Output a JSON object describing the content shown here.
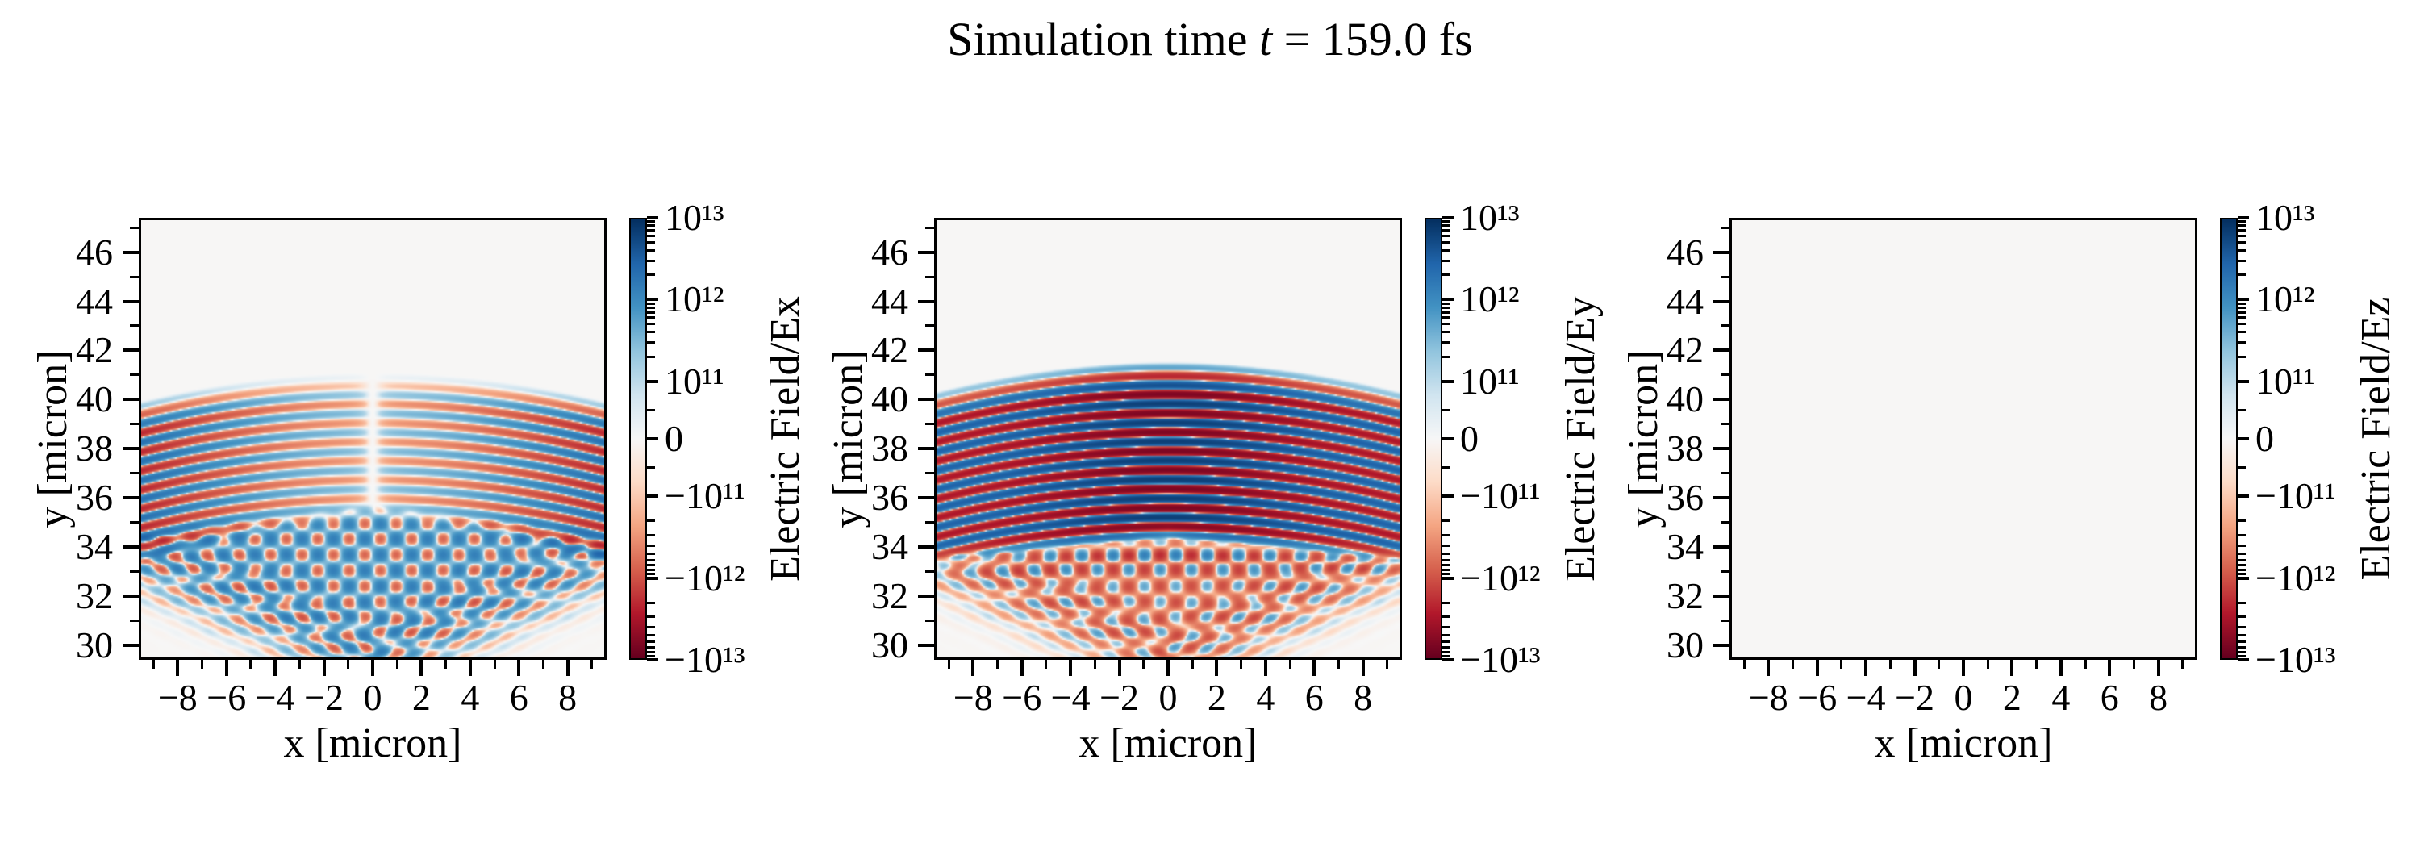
{
  "title": {
    "prefix": "Simulation time ",
    "var": "t",
    "suffix": " = 159.0 fs",
    "text": "Simulation time t = 159.0 fs"
  },
  "figure": {
    "background": "#ffffff",
    "spine_color": "#000000",
    "text_color": "#000000",
    "near_zero_fill": "#f6f5f4"
  },
  "colormap": {
    "name": "RdBu",
    "stops": [
      [
        -1.0,
        "#67001f"
      ],
      [
        -0.8,
        "#b2182b"
      ],
      [
        -0.6,
        "#d6604d"
      ],
      [
        -0.4,
        "#f4a582"
      ],
      [
        -0.2,
        "#fddbc7"
      ],
      [
        0.0,
        "#f7f7f7"
      ],
      [
        0.2,
        "#d1e5f0"
      ],
      [
        0.4,
        "#92c5de"
      ],
      [
        0.6,
        "#4393c3"
      ],
      [
        0.8,
        "#2166ac"
      ],
      [
        1.0,
        "#053061"
      ]
    ]
  },
  "chart_data": [
    {
      "type": "heatmap",
      "component": "Ex",
      "xlabel": "x [micron]",
      "ylabel": "y [micron]",
      "colorbar_label": "Electric Field/Ex",
      "xlim": [
        -9.6,
        9.6
      ],
      "ylim": [
        29.4,
        47.4
      ],
      "xticks": [
        -8,
        -6,
        -4,
        -2,
        0,
        2,
        4,
        6,
        8
      ],
      "xticklabels": [
        "−8",
        "−6",
        "−4",
        "−2",
        "0",
        "2",
        "4",
        "6",
        "8"
      ],
      "xminorticks": [
        -9,
        -7,
        -5,
        -3,
        -1,
        1,
        3,
        5,
        7,
        9
      ],
      "yticks": [
        30,
        32,
        34,
        36,
        38,
        40,
        42,
        44,
        46
      ],
      "yticklabels": [
        "30",
        "32",
        "34",
        "36",
        "38",
        "40",
        "42",
        "44",
        "46"
      ],
      "yminorticks": [
        31,
        33,
        35,
        37,
        39,
        41,
        43,
        45,
        47
      ],
      "grid": false,
      "colorbar": {
        "scale": "symlog",
        "vmin": -10000000000000.0,
        "vmax": 10000000000000.0,
        "linthresh": 100000000000.0,
        "lin_frac": 0.26,
        "decade_frac": 0.37,
        "ticks": [
          {
            "value": 10000000000000.0,
            "label": "10¹³"
          },
          {
            "value": 1000000000000.0,
            "label": "10¹²"
          },
          {
            "value": 100000000000.0,
            "label": "10¹¹"
          },
          {
            "value": 0,
            "label": "0"
          },
          {
            "value": -100000000000.0,
            "label": "−10¹¹"
          },
          {
            "value": -1000000000000.0,
            "label": "−10¹²"
          },
          {
            "value": -10000000000000.0,
            "label": "−10¹³"
          }
        ],
        "log_minor_mantissas": [
          2,
          3,
          4,
          5,
          6,
          7,
          8,
          9
        ],
        "lin_minor_values": [
          50000000000.0,
          -50000000000.0
        ]
      },
      "field_model": {
        "background_value": -4000000000.0,
        "stripe": {
          "top": 41.2,
          "top_ramp": 1.2,
          "wavelength": 0.78,
          "curvature": 0.013,
          "bottom_center": 35.2,
          "bottom_slope": 0.23,
          "bottom_ramp": 1.0,
          "amp_profile": "edge_null_center",
          "amp_base": 350000000000.0,
          "amp_edge": 1800000000000.0,
          "null_width": 0.4
        },
        "interference": {
          "top": 35.8,
          "top_slope": 0.1,
          "checker_amp": 1100000000000.0,
          "checker_pitch": 1.3,
          "bias": 350000000000.0,
          "ray_amp": 450000000000.0,
          "fan_slope": 2.2,
          "fan_offset": 1.2,
          "band_boost": 0,
          "band_y": 0
        }
      }
    },
    {
      "type": "heatmap",
      "component": "Ey",
      "xlabel": "x [micron]",
      "ylabel": "y [micron]",
      "colorbar_label": "Electric Field/Ey",
      "xlim": [
        -9.6,
        9.6
      ],
      "ylim": [
        29.4,
        47.4
      ],
      "xticks": [
        -8,
        -6,
        -4,
        -2,
        0,
        2,
        4,
        6,
        8
      ],
      "xticklabels": [
        "−8",
        "−6",
        "−4",
        "−2",
        "0",
        "2",
        "4",
        "6",
        "8"
      ],
      "xminorticks": [
        -9,
        -7,
        -5,
        -3,
        -1,
        1,
        3,
        5,
        7,
        9
      ],
      "yticks": [
        30,
        32,
        34,
        36,
        38,
        40,
        42,
        44,
        46
      ],
      "yticklabels": [
        "30",
        "32",
        "34",
        "36",
        "38",
        "40",
        "42",
        "44",
        "46"
      ],
      "yminorticks": [
        31,
        33,
        35,
        37,
        39,
        41,
        43,
        45,
        47
      ],
      "grid": false,
      "colorbar": {
        "scale": "symlog",
        "vmin": -10000000000000.0,
        "vmax": 10000000000000.0,
        "linthresh": 100000000000.0,
        "lin_frac": 0.26,
        "decade_frac": 0.37,
        "ticks": [
          {
            "value": 10000000000000.0,
            "label": "10¹³"
          },
          {
            "value": 1000000000000.0,
            "label": "10¹²"
          },
          {
            "value": 100000000000.0,
            "label": "10¹¹"
          },
          {
            "value": 0,
            "label": "0"
          },
          {
            "value": -100000000000.0,
            "label": "−10¹¹"
          },
          {
            "value": -1000000000000.0,
            "label": "−10¹²"
          },
          {
            "value": -10000000000000.0,
            "label": "−10¹³"
          }
        ],
        "log_minor_mantissas": [
          2,
          3,
          4,
          5,
          6,
          7,
          8,
          9
        ],
        "lin_minor_values": [
          50000000000.0,
          -50000000000.0
        ]
      },
      "field_model": {
        "background_value": -4000000000.0,
        "stripe": {
          "top": 41.6,
          "top_ramp": 1.3,
          "wavelength": 0.78,
          "curvature": 0.013,
          "bottom_center": 34.2,
          "bottom_slope": 0.1,
          "bottom_ramp": 0.9,
          "amp_profile": "center_peak",
          "amp_base": 3000000000000.0,
          "amp_center": 4000000000000.0,
          "center_width": 4.5
        },
        "interference": {
          "top": 34.6,
          "top_slope": 0.08,
          "checker_amp": 800000000000.0,
          "checker_pitch": 1.3,
          "bias": -300000000000.0,
          "ray_amp": -350000000000.0,
          "fan_slope": 2.2,
          "fan_offset": 1.2,
          "band_boost": 1.2,
          "band_y": 33.6
        }
      }
    },
    {
      "type": "heatmap",
      "component": "Ez",
      "xlabel": "x [micron]",
      "ylabel": "y [micron]",
      "colorbar_label": "Electric Field/Ez",
      "xlim": [
        -9.6,
        9.6
      ],
      "ylim": [
        29.4,
        47.4
      ],
      "xticks": [
        -8,
        -6,
        -4,
        -2,
        0,
        2,
        4,
        6,
        8
      ],
      "xticklabels": [
        "−8",
        "−6",
        "−4",
        "−2",
        "0",
        "2",
        "4",
        "6",
        "8"
      ],
      "xminorticks": [
        -9,
        -7,
        -5,
        -3,
        -1,
        1,
        3,
        5,
        7,
        9
      ],
      "yticks": [
        30,
        32,
        34,
        36,
        38,
        40,
        42,
        44,
        46
      ],
      "yticklabels": [
        "30",
        "32",
        "34",
        "36",
        "38",
        "40",
        "42",
        "44",
        "46"
      ],
      "yminorticks": [
        31,
        33,
        35,
        37,
        39,
        41,
        43,
        45,
        47
      ],
      "grid": false,
      "colorbar": {
        "scale": "symlog",
        "vmin": -10000000000000.0,
        "vmax": 10000000000000.0,
        "linthresh": 100000000000.0,
        "lin_frac": 0.26,
        "decade_frac": 0.37,
        "ticks": [
          {
            "value": 10000000000000.0,
            "label": "10¹³"
          },
          {
            "value": 1000000000000.0,
            "label": "10¹²"
          },
          {
            "value": 100000000000.0,
            "label": "10¹¹"
          },
          {
            "value": 0,
            "label": "0"
          },
          {
            "value": -100000000000.0,
            "label": "−10¹¹"
          },
          {
            "value": -1000000000000.0,
            "label": "−10¹²"
          },
          {
            "value": -10000000000000.0,
            "label": "−10¹³"
          }
        ],
        "log_minor_mantissas": [
          2,
          3,
          4,
          5,
          6,
          7,
          8,
          9
        ],
        "lin_minor_values": [
          50000000000.0,
          -50000000000.0
        ]
      },
      "field_model": {
        "background_value": -4000000000.0,
        "stripe": null,
        "interference": null
      }
    }
  ]
}
